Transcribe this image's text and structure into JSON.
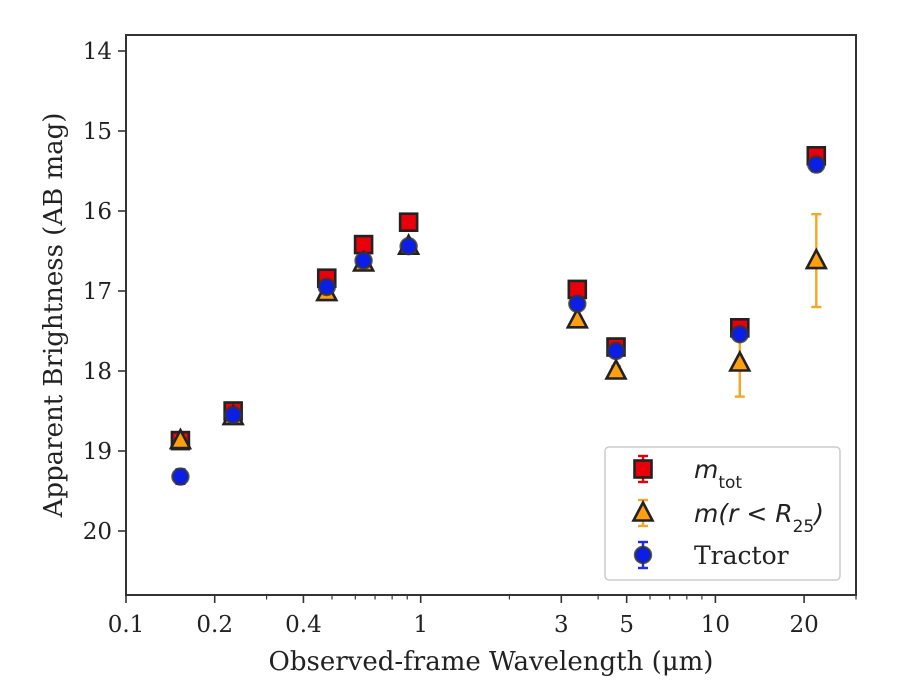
{
  "chart_data": {
    "type": "scatter",
    "title": "",
    "xlabel": "Observed-frame Wavelength (μm)",
    "ylabel": "Apparent Brightness (AB mag)",
    "x_scale": "log",
    "xlim": [
      0.1,
      30
    ],
    "ylim": [
      20.8,
      13.8
    ],
    "y_inverted": true,
    "x_tick_labels": [
      "0.1",
      "0.2",
      "0.4",
      "1",
      "3",
      "5",
      "10",
      "20"
    ],
    "x_tick_values": [
      0.1,
      0.2,
      0.4,
      1,
      3,
      5,
      10,
      20
    ],
    "y_tick_labels": [
      "14",
      "15",
      "16",
      "17",
      "18",
      "19",
      "20"
    ],
    "y_tick_values": [
      14,
      15,
      16,
      17,
      18,
      19,
      20
    ],
    "grid": false,
    "legend_position": "bottom-right",
    "series": [
      {
        "name": "m_tot",
        "legend_main": "m",
        "legend_sub": "tot",
        "marker": "square",
        "color": "#e8000b",
        "error_color": "#e8000b",
        "x": [
          0.153,
          0.231,
          0.48,
          0.64,
          0.91,
          3.4,
          4.6,
          12.1,
          22.0
        ],
        "y": [
          18.87,
          18.5,
          16.84,
          16.42,
          16.14,
          16.98,
          17.7,
          17.46,
          15.31
        ],
        "yerr": [
          0.05,
          0.05,
          0.03,
          0.03,
          0.03,
          0.04,
          0.05,
          0.05,
          0.06
        ]
      },
      {
        "name": "m(r < R_25)",
        "legend_main": "m(r < R",
        "legend_sub": "25",
        "legend_end": ")",
        "marker": "triangle",
        "color": "#ff9f0e",
        "error_color": "#f5a623",
        "x": [
          0.153,
          0.231,
          0.48,
          0.64,
          0.91,
          3.4,
          4.6,
          12.1,
          22.0
        ],
        "y": [
          18.87,
          18.57,
          17.02,
          16.65,
          16.44,
          17.36,
          18.0,
          17.9,
          16.62
        ],
        "yerr": [
          0.05,
          0.05,
          0.04,
          0.03,
          0.03,
          0.04,
          0.06,
          0.42,
          0.58
        ]
      },
      {
        "name": "Tractor",
        "marker": "circle",
        "color": "#0a1ee8",
        "error_color": "#1a2cf0",
        "x": [
          0.153,
          0.231,
          0.48,
          0.64,
          0.91,
          3.4,
          4.6,
          12.1,
          22.0
        ],
        "y": [
          19.32,
          18.55,
          16.95,
          16.62,
          16.44,
          17.16,
          17.75,
          17.54,
          15.42
        ],
        "yerr": [
          0.09,
          0.06,
          0.03,
          0.03,
          0.03,
          0.04,
          0.05,
          0.05,
          0.08
        ]
      }
    ]
  }
}
